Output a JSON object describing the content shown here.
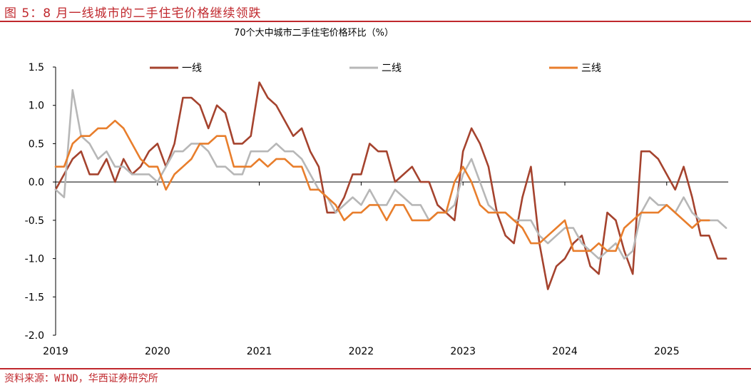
{
  "figure": {
    "title": "图 5：8 月一线城市的二手住宅价格继续领跌",
    "source": "资料来源：WIND，华西证券研究所"
  },
  "chart_data": {
    "type": "line",
    "title": "70个大中城市二手住宅价格环比（%）",
    "xlabel": "",
    "ylabel": "",
    "ylim": [
      -2.0,
      1.5
    ],
    "yticks": [
      "1.5",
      "1.0",
      "0.5",
      "0.0",
      "-0.5",
      "-1.0",
      "-1.5",
      "-2.0"
    ],
    "ytick_values": [
      1.5,
      1.0,
      0.5,
      0.0,
      -0.5,
      -1.0,
      -1.5,
      -2.0
    ],
    "xtick_labels": [
      "2019",
      "2020",
      "2021",
      "2022",
      "2023",
      "2024",
      "2025"
    ],
    "start": "2019-01",
    "grid": false,
    "legend_position": "top",
    "series": [
      {
        "name": "一线",
        "color": "#a5432e",
        "values": [
          -0.1,
          0.1,
          0.3,
          0.4,
          0.1,
          0.1,
          0.3,
          0.0,
          0.3,
          0.1,
          0.2,
          0.4,
          0.5,
          0.2,
          0.5,
          1.1,
          1.1,
          1.0,
          0.7,
          1.0,
          0.9,
          0.5,
          0.5,
          0.6,
          1.3,
          1.1,
          1.0,
          0.8,
          0.6,
          0.7,
          0.4,
          0.2,
          -0.4,
          -0.4,
          -0.2,
          0.1,
          0.1,
          0.5,
          0.4,
          0.4,
          0.0,
          0.1,
          0.2,
          0.0,
          0.0,
          -0.3,
          -0.4,
          -0.5,
          0.4,
          0.7,
          0.5,
          0.2,
          -0.4,
          -0.7,
          -0.8,
          -0.2,
          0.2,
          -0.8,
          -1.4,
          -1.1,
          -1.0,
          -0.8,
          -0.7,
          -1.1,
          -1.2,
          -0.4,
          -0.5,
          -0.9,
          -1.2,
          0.4,
          0.4,
          0.3,
          0.1,
          -0.1,
          0.2,
          -0.2,
          -0.7,
          -0.7,
          -1.0,
          -1.0
        ]
      },
      {
        "name": "二线",
        "color": "#b7b7b7",
        "values": [
          -0.1,
          -0.2,
          1.2,
          0.6,
          0.5,
          0.3,
          0.4,
          0.2,
          0.2,
          0.1,
          0.1,
          0.1,
          0.0,
          0.2,
          0.4,
          0.4,
          0.5,
          0.5,
          0.4,
          0.2,
          0.2,
          0.1,
          0.1,
          0.4,
          0.4,
          0.4,
          0.5,
          0.4,
          0.4,
          0.3,
          0.1,
          -0.1,
          -0.2,
          -0.4,
          -0.3,
          -0.2,
          -0.3,
          -0.1,
          -0.3,
          -0.3,
          -0.1,
          -0.2,
          -0.3,
          -0.3,
          -0.5,
          -0.4,
          -0.4,
          -0.3,
          0.1,
          0.3,
          0.0,
          -0.3,
          -0.4,
          -0.4,
          -0.5,
          -0.5,
          -0.5,
          -0.7,
          -0.8,
          -0.7,
          -0.6,
          -0.6,
          -0.8,
          -0.9,
          -1.0,
          -0.9,
          -0.8,
          -1.0,
          -0.9,
          -0.4,
          -0.2,
          -0.3,
          -0.3,
          -0.4,
          -0.2,
          -0.4,
          -0.5,
          -0.5,
          -0.5,
          -0.6
        ]
      },
      {
        "name": "三线",
        "color": "#e87e2c",
        "values": [
          0.2,
          0.2,
          0.5,
          0.6,
          0.6,
          0.7,
          0.7,
          0.8,
          0.7,
          0.5,
          0.3,
          0.2,
          0.2,
          -0.1,
          0.1,
          0.2,
          0.3,
          0.5,
          0.5,
          0.6,
          0.6,
          0.2,
          0.2,
          0.2,
          0.3,
          0.2,
          0.3,
          0.3,
          0.2,
          0.2,
          -0.1,
          -0.1,
          -0.2,
          -0.3,
          -0.5,
          -0.4,
          -0.4,
          -0.3,
          -0.3,
          -0.5,
          -0.3,
          -0.3,
          -0.5,
          -0.5,
          -0.5,
          -0.4,
          -0.4,
          0.0,
          0.2,
          0.0,
          -0.3,
          -0.4,
          -0.4,
          -0.4,
          -0.5,
          -0.6,
          -0.8,
          -0.8,
          -0.7,
          -0.6,
          -0.5,
          -0.9,
          -0.9,
          -0.9,
          -0.8,
          -0.9,
          -0.9,
          -0.6,
          -0.5,
          -0.4,
          -0.4,
          -0.4,
          -0.3,
          -0.4,
          -0.5,
          -0.6,
          -0.5,
          -0.5
        ]
      }
    ]
  }
}
